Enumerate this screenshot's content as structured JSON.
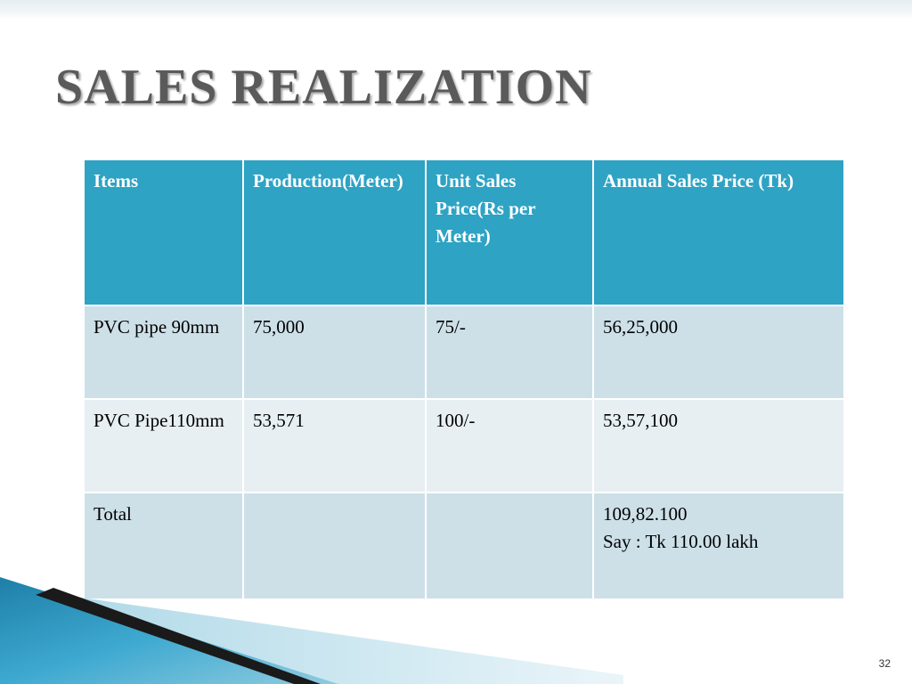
{
  "slide": {
    "title": "SALES REALIZATION",
    "page_number": "32"
  },
  "table": {
    "headers": [
      "Items",
      "Production(Meter)",
      "Unit Sales Price(Rs per Meter)",
      "Annual Sales Price (Tk)"
    ],
    "rows": [
      {
        "item": "PVC pipe 90mm",
        "production": "75,000",
        "unit_price": "75/-",
        "annual_price": "56,25,000",
        "annual_note": ""
      },
      {
        "item": "PVC Pipe110mm",
        "production": "53,571",
        "unit_price": "100/-",
        "annual_price": "53,57,100",
        "annual_note": ""
      },
      {
        "item": "Total",
        "production": "",
        "unit_price": "",
        "annual_price": "109,82.100",
        "annual_note": "Say : Tk 110.00 lakh"
      }
    ]
  },
  "colors": {
    "header_bg": "#2ea3c4",
    "row_odd_bg": "#cde0e8",
    "row_even_bg": "#e7eff3",
    "title_color": "#5a5a5a"
  }
}
